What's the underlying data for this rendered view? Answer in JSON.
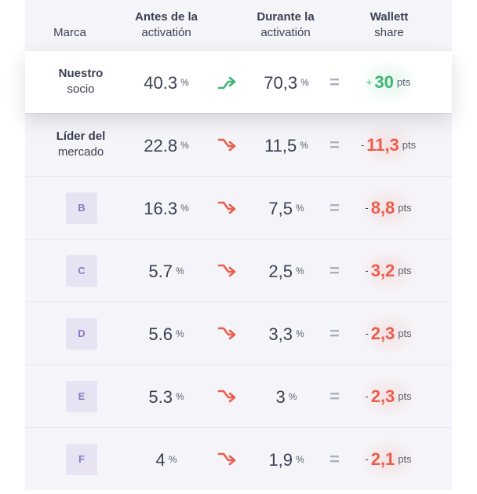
{
  "header": {
    "brand": "Marca",
    "before_line1": "Antes de la",
    "before_line2": "activatión",
    "during_line1": "Durante la",
    "during_line2": "activatión",
    "share_line1": "Wallett",
    "share_line2": "share"
  },
  "colors": {
    "positive": "#3fb476",
    "negative": "#eb5d4b",
    "badge_bg": "#e7e3f3",
    "badge_text": "#8a78c7"
  },
  "rows": [
    {
      "brand_bold": "Nuestro",
      "brand_normal": "socio",
      "badge": "",
      "before": "40.3",
      "before_unit": "%",
      "trend": "up-arrow-icon",
      "during": "70,3",
      "during_unit": "%",
      "equals": "=",
      "sign": "+",
      "share": "30",
      "share_unit": "pts"
    },
    {
      "brand_bold": "Líder del",
      "brand_normal": "mercado",
      "badge": "",
      "before": "22.8",
      "before_unit": "%",
      "trend": "down-arrow-icon",
      "during": "11,5",
      "during_unit": "%",
      "equals": "=",
      "sign": "-",
      "share": "11,3",
      "share_unit": "pts"
    },
    {
      "brand_bold": "",
      "brand_normal": "",
      "badge": "B",
      "before": "16.3",
      "before_unit": "%",
      "trend": "down-arrow-icon",
      "during": "7,5",
      "during_unit": "%",
      "equals": "=",
      "sign": "-",
      "share": "8,8",
      "share_unit": "pts"
    },
    {
      "brand_bold": "",
      "brand_normal": "",
      "badge": "C",
      "before": "5.7",
      "before_unit": "%",
      "trend": "down-arrow-icon",
      "during": "2,5",
      "during_unit": "%",
      "equals": "=",
      "sign": "-",
      "share": "3,2",
      "share_unit": "pts"
    },
    {
      "brand_bold": "",
      "brand_normal": "",
      "badge": "D",
      "before": "5.6",
      "before_unit": "%",
      "trend": "down-arrow-icon",
      "during": "3,3",
      "during_unit": "%",
      "equals": "=",
      "sign": "-",
      "share": "2,3",
      "share_unit": "pts"
    },
    {
      "brand_bold": "",
      "brand_normal": "",
      "badge": "E",
      "before": "5.3",
      "before_unit": "%",
      "trend": "down-arrow-icon",
      "during": "3",
      "during_unit": "%",
      "equals": "=",
      "sign": "-",
      "share": "2,3",
      "share_unit": "pts"
    },
    {
      "brand_bold": "",
      "brand_normal": "",
      "badge": "F",
      "before": "4",
      "before_unit": "%",
      "trend": "down-arrow-icon",
      "during": "1,9",
      "during_unit": "%",
      "equals": "=",
      "sign": "-",
      "share": "2,1",
      "share_unit": "pts"
    }
  ]
}
